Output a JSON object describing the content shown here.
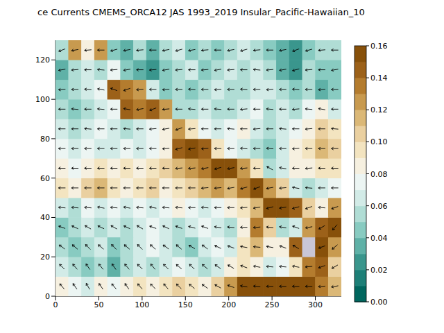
{
  "chart_data": {
    "type": "quiver",
    "title": "ce Currents CMEMS_ORCA12 JAS 1993_2019 Insular_Pacific-Hawaiian_10",
    "x": [
      7.5,
      22.5,
      37.5,
      52.5,
      67.5,
      82.5,
      97.5,
      112.5,
      127.5,
      142.5,
      157.5,
      172.5,
      187.5,
      202.5,
      217.5,
      232.5,
      247.5,
      262.5,
      277.5,
      292.5,
      307.5,
      322.5
    ],
    "y": [
      5,
      15,
      25,
      35,
      45,
      55,
      65,
      75,
      85,
      95,
      105,
      115,
      125
    ],
    "xlim": [
      0,
      330
    ],
    "ylim": [
      0,
      130
    ],
    "xticks": [
      0,
      50,
      100,
      150,
      200,
      250,
      300
    ],
    "yticks": [
      0,
      20,
      40,
      60,
      80,
      100,
      120
    ],
    "speed": [
      [
        0.08,
        0.07,
        0.06,
        0.08,
        0.07,
        0.08,
        0.09,
        0.08,
        0.09,
        0.1,
        0.09,
        0.08,
        0.1,
        0.12,
        0.15,
        0.16,
        0.16,
        0.16,
        0.16,
        0.15,
        0.13,
        0.11
      ],
      [
        0.06,
        0.05,
        0.04,
        0.05,
        0.03,
        0.05,
        0.06,
        0.05,
        0.06,
        0.07,
        0.06,
        0.05,
        0.06,
        0.08,
        0.09,
        0.08,
        0.06,
        0.07,
        0.09,
        0.13,
        0.14,
        0.1
      ],
      [
        0.05,
        0.04,
        0.05,
        0.06,
        0.04,
        0.05,
        0.06,
        0.07,
        0.06,
        0.05,
        0.04,
        0.06,
        0.07,
        0.06,
        0.09,
        0.11,
        0.08,
        0.08,
        0.14,
        null,
        0.16,
        0.12
      ],
      [
        0.04,
        0.05,
        0.06,
        0.05,
        0.06,
        0.05,
        0.06,
        0.07,
        0.06,
        0.05,
        0.06,
        0.07,
        0.06,
        0.05,
        0.08,
        0.13,
        0.1,
        0.05,
        0.06,
        0.12,
        0.14,
        0.15
      ],
      [
        0.06,
        0.05,
        0.07,
        0.06,
        0.07,
        0.06,
        0.07,
        0.06,
        0.07,
        0.08,
        0.07,
        0.06,
        0.07,
        0.08,
        0.09,
        0.11,
        0.16,
        0.15,
        0.14,
        0.1,
        0.08,
        0.12
      ],
      [
        0.09,
        0.08,
        0.1,
        0.11,
        0.09,
        0.08,
        0.09,
        0.1,
        0.08,
        0.09,
        0.1,
        0.11,
        0.12,
        0.11,
        0.13,
        0.15,
        0.12,
        0.1,
        0.06,
        0.05,
        0.06,
        0.07
      ],
      [
        0.08,
        0.07,
        0.08,
        0.09,
        0.08,
        0.09,
        0.08,
        0.09,
        0.1,
        0.11,
        0.12,
        0.13,
        0.15,
        0.15,
        0.12,
        0.09,
        0.05,
        0.06,
        0.08,
        0.08,
        0.09,
        0.09
      ],
      [
        0.07,
        0.06,
        0.07,
        0.06,
        0.06,
        0.07,
        0.06,
        0.07,
        0.08,
        0.14,
        0.15,
        0.14,
        0.09,
        0.07,
        0.06,
        0.05,
        0.04,
        0.06,
        0.08,
        0.09,
        0.11,
        0.1
      ],
      [
        0.06,
        0.05,
        0.06,
        0.07,
        0.06,
        0.05,
        0.06,
        0.07,
        0.08,
        0.12,
        0.09,
        0.07,
        0.06,
        0.07,
        0.08,
        0.06,
        0.05,
        0.06,
        0.07,
        0.08,
        0.1,
        0.09
      ],
      [
        0.05,
        0.04,
        0.05,
        0.06,
        0.07,
        0.14,
        0.13,
        0.14,
        0.12,
        0.05,
        0.05,
        0.06,
        0.05,
        0.05,
        0.06,
        0.07,
        0.05,
        0.06,
        0.05,
        0.07,
        0.08,
        0.06
      ],
      [
        0.04,
        0.05,
        0.06,
        0.07,
        0.14,
        0.13,
        0.12,
        0.06,
        0.04,
        0.05,
        0.04,
        0.05,
        0.06,
        0.05,
        0.05,
        0.06,
        0.06,
        0.05,
        0.04,
        0.05,
        0.03,
        0.04
      ],
      [
        0.03,
        0.05,
        0.06,
        0.05,
        0.07,
        0.04,
        0.03,
        0.02,
        0.04,
        0.05,
        0.06,
        0.04,
        0.05,
        0.06,
        0.05,
        0.06,
        0.05,
        0.03,
        0.02,
        0.05,
        0.04,
        0.04
      ],
      [
        0.05,
        0.12,
        0.08,
        0.12,
        0.04,
        0.03,
        0.05,
        0.03,
        0.05,
        0.06,
        0.04,
        0.05,
        0.04,
        0.05,
        0.06,
        0.05,
        0.04,
        0.03,
        0.02,
        0.04,
        0.05,
        0.05
      ]
    ],
    "direction": [
      [
        130,
        125,
        120,
        125,
        130,
        125,
        130,
        135,
        130,
        135,
        140,
        145,
        150,
        160,
        170,
        175,
        180,
        180,
        180,
        180,
        185,
        190
      ],
      [
        135,
        130,
        125,
        130,
        125,
        130,
        135,
        130,
        135,
        140,
        135,
        140,
        145,
        150,
        160,
        170,
        175,
        175,
        170,
        185,
        200,
        210
      ],
      [
        145,
        140,
        135,
        140,
        135,
        140,
        135,
        140,
        145,
        140,
        150,
        145,
        155,
        160,
        170,
        175,
        170,
        160,
        150,
        null,
        200,
        220
      ],
      [
        160,
        155,
        150,
        155,
        150,
        155,
        150,
        160,
        155,
        160,
        165,
        160,
        170,
        175,
        180,
        185,
        175,
        170,
        160,
        190,
        210,
        230
      ],
      [
        175,
        175,
        175,
        170,
        175,
        170,
        175,
        170,
        175,
        175,
        180,
        175,
        180,
        180,
        185,
        190,
        195,
        190,
        195,
        200,
        175,
        200
      ],
      [
        180,
        180,
        180,
        180,
        180,
        180,
        180,
        180,
        180,
        180,
        180,
        185,
        185,
        190,
        195,
        200,
        190,
        185,
        170,
        175,
        180,
        180
      ],
      [
        180,
        180,
        180,
        180,
        180,
        180,
        180,
        180,
        180,
        185,
        185,
        190,
        195,
        190,
        185,
        180,
        150,
        170,
        180,
        185,
        180,
        180
      ],
      [
        180,
        180,
        180,
        180,
        180,
        180,
        180,
        180,
        185,
        195,
        190,
        185,
        180,
        180,
        175,
        180,
        175,
        180,
        185,
        180,
        180,
        180
      ],
      [
        180,
        180,
        175,
        180,
        180,
        175,
        180,
        185,
        190,
        200,
        185,
        180,
        180,
        175,
        180,
        185,
        180,
        175,
        180,
        185,
        180,
        175
      ],
      [
        180,
        175,
        180,
        175,
        180,
        170,
        190,
        200,
        185,
        180,
        175,
        180,
        175,
        180,
        185,
        180,
        175,
        180,
        185,
        175,
        170,
        180
      ],
      [
        185,
        180,
        175,
        170,
        160,
        200,
        185,
        180,
        185,
        180,
        175,
        180,
        185,
        180,
        175,
        180,
        185,
        180,
        175,
        180,
        185,
        180
      ],
      [
        190,
        185,
        180,
        175,
        185,
        190,
        180,
        185,
        190,
        185,
        180,
        185,
        190,
        185,
        180,
        175,
        185,
        190,
        195,
        185,
        180,
        190
      ],
      [
        200,
        190,
        185,
        180,
        195,
        190,
        185,
        180,
        190,
        195,
        190,
        185,
        180,
        190,
        195,
        185,
        180,
        190,
        200,
        195,
        185,
        180
      ]
    ],
    "colorbar": {
      "range": [
        0,
        0.16
      ],
      "ticks": [
        {
          "value": 0,
          "label": "0.00"
        },
        {
          "value": 0.02,
          "label": "0.02"
        },
        {
          "value": 0.04,
          "label": "0.04"
        },
        {
          "value": 0.06,
          "label": "0.06"
        },
        {
          "value": 0.08,
          "label": "0.08"
        },
        {
          "value": 0.1,
          "label": "0.10"
        },
        {
          "value": 0.12,
          "label": "0.12"
        },
        {
          "value": 0.14,
          "label": "0.14"
        },
        {
          "value": 0.16,
          "label": "0.16"
        }
      ]
    }
  }
}
